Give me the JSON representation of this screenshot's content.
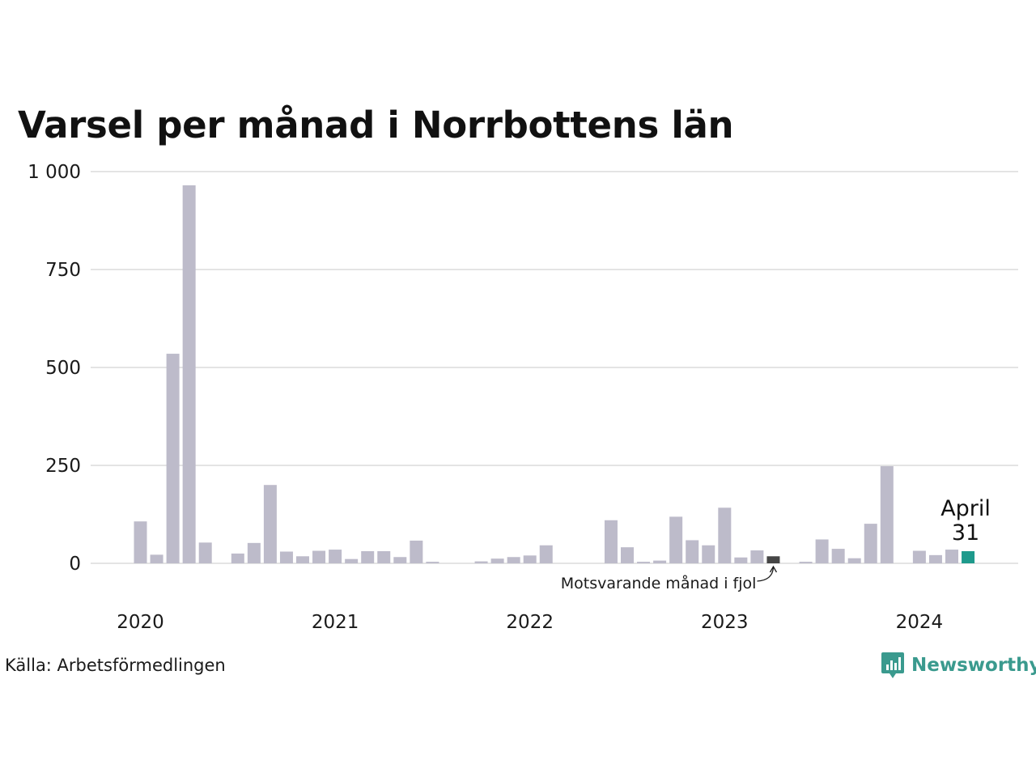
{
  "title": "Varsel per månad i Norrbottens län",
  "source": "Källa: Arbetsförmedlingen",
  "brand": {
    "name": "Newsworthy",
    "icon": "newsworthy-logo-icon"
  },
  "colors": {
    "bar": "#bdbbca",
    "highlight": "#454545",
    "latest": "#1e9a8c",
    "grid": "#e4e4e4",
    "brand": "#3a9a8e"
  },
  "chart_data": {
    "type": "bar",
    "title": "Varsel per månad i Norrbottens län",
    "xlabel": "",
    "ylabel": "",
    "ylim": [
      0,
      1000
    ],
    "y_ticks": [
      0,
      250,
      500,
      750,
      1000
    ],
    "y_tick_labels": [
      "0",
      "250",
      "500",
      "750",
      "1 000"
    ],
    "x_tick_labels": [
      "2020",
      "2021",
      "2022",
      "2023",
      "2024"
    ],
    "grid": "horizontal",
    "categories": [
      "2020-01",
      "2020-02",
      "2020-03",
      "2020-04",
      "2020-05",
      "2020-06",
      "2020-07",
      "2020-08",
      "2020-09",
      "2020-10",
      "2020-11",
      "2020-12",
      "2021-01",
      "2021-02",
      "2021-03",
      "2021-04",
      "2021-05",
      "2021-06",
      "2021-07",
      "2021-08",
      "2021-09",
      "2021-10",
      "2021-11",
      "2021-12",
      "2022-01",
      "2022-02",
      "2022-03",
      "2022-04",
      "2022-05",
      "2022-06",
      "2022-07",
      "2022-08",
      "2022-09",
      "2022-10",
      "2022-11",
      "2022-12",
      "2023-01",
      "2023-02",
      "2023-03",
      "2023-04",
      "2023-05",
      "2023-06",
      "2023-07",
      "2023-08",
      "2023-09",
      "2023-10",
      "2023-11",
      "2023-12",
      "2024-01",
      "2024-02",
      "2024-03",
      "2024-04"
    ],
    "values": [
      107,
      22,
      535,
      965,
      53,
      0,
      25,
      52,
      200,
      30,
      18,
      32,
      35,
      11,
      31,
      31,
      16,
      58,
      4,
      0,
      0,
      5,
      12,
      16,
      20,
      46,
      0,
      0,
      0,
      110,
      41,
      4,
      7,
      119,
      59,
      46,
      142,
      15,
      33,
      18,
      0,
      4,
      61,
      37,
      13,
      101,
      248,
      0,
      32,
      21,
      35,
      31
    ],
    "highlight_index": 39,
    "latest_index": 51,
    "annotations": [
      {
        "text": "Motsvarande månad i fjol",
        "target": "2023-04"
      },
      {
        "text": "April",
        "target": "2024-04"
      },
      {
        "text": "31",
        "target": "2024-04"
      }
    ]
  }
}
